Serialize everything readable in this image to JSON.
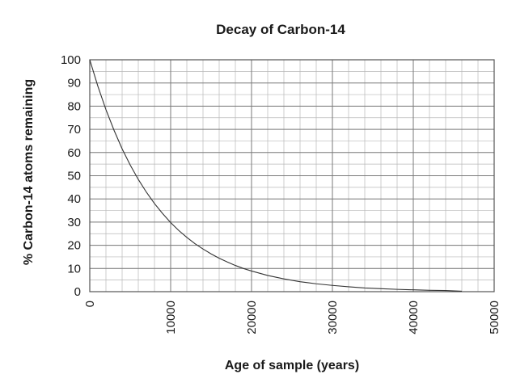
{
  "chart_data": {
    "type": "line",
    "title": "Decay of Carbon-14",
    "xlabel": "Age of sample (years)",
    "ylabel": "% Carbon-14 atoms remaining",
    "xlim": [
      0,
      50000
    ],
    "ylim": [
      0,
      100
    ],
    "x_ticks": [
      "0",
      "10000",
      "20000",
      "30000",
      "40000",
      "50000"
    ],
    "y_ticks": [
      "0",
      "10",
      "20",
      "30",
      "40",
      "50",
      "60",
      "70",
      "80",
      "90",
      "100"
    ],
    "grid": true,
    "minor_grid": {
      "x_step": 2000,
      "y_step": 5
    },
    "series": [
      {
        "name": "Carbon-14",
        "x": [
          0,
          1000,
          2000,
          3000,
          4000,
          5000,
          6000,
          7000,
          8000,
          9000,
          10000,
          11000,
          12000,
          13000,
          14000,
          15000,
          16000,
          17000,
          18000,
          19000,
          20000,
          22000,
          24000,
          26000,
          28000,
          30000,
          32000,
          34000,
          36000,
          38000,
          40000,
          42000,
          44000,
          46000
        ],
        "y": [
          100,
          88.6,
          78.5,
          69.6,
          61.6,
          54.6,
          48.4,
          42.9,
          38.0,
          33.7,
          29.8,
          26.4,
          23.4,
          20.7,
          18.4,
          16.3,
          14.4,
          12.8,
          11.3,
          10.0,
          8.9,
          7.0,
          5.5,
          4.3,
          3.4,
          2.7,
          2.1,
          1.6,
          1.3,
          1.0,
          0.8,
          0.6,
          0.5,
          0.2
        ]
      }
    ],
    "colors": {
      "line": "#333333",
      "grid_major": "#7a7a7a",
      "grid_minor": "#b8b8b8",
      "text": "#1a1a1a"
    }
  }
}
